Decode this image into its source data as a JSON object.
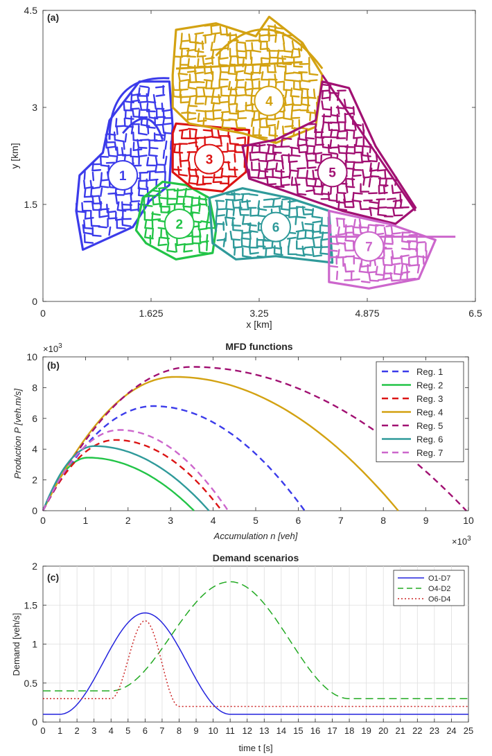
{
  "figure": {
    "panels": [
      "(a)",
      "(b)",
      "(c)"
    ]
  },
  "chart_data": [
    {
      "type": "map",
      "panel_label": "(a)",
      "xlabel": "x [km]",
      "ylabel": "y [km]",
      "xlim": [
        0,
        6.5
      ],
      "ylim": [
        0,
        4.5
      ],
      "xticks": [
        "0",
        "1.625",
        "3.25",
        "4.875",
        "6.5"
      ],
      "yticks": [
        "0",
        "1.5",
        "3",
        "4.5"
      ],
      "regions": [
        {
          "id": "1",
          "color": "#3b3bea",
          "center": [
            1.2,
            1.95
          ]
        },
        {
          "id": "2",
          "color": "#22c447",
          "center": [
            2.05,
            1.2
          ]
        },
        {
          "id": "3",
          "color": "#dc1414",
          "center": [
            2.5,
            2.2
          ]
        },
        {
          "id": "4",
          "color": "#d3a212",
          "center": [
            3.4,
            3.1
          ]
        },
        {
          "id": "5",
          "color": "#a11072",
          "center": [
            4.35,
            2.0
          ]
        },
        {
          "id": "6",
          "color": "#2f9a9a",
          "center": [
            3.5,
            1.15
          ]
        },
        {
          "id": "7",
          "color": "#cc66cc",
          "center": [
            4.9,
            0.85
          ]
        }
      ]
    },
    {
      "type": "line",
      "panel_label": "(b)",
      "title": "MFD functions",
      "xlabel": "Accumulation n [veh]",
      "ylabel": "Production P [veh.m/s]",
      "x_multiplier": "×10^3",
      "y_multiplier": "×10^3",
      "xlim": [
        0,
        10
      ],
      "ylim": [
        0,
        10
      ],
      "xticks": [
        0,
        1,
        2,
        3,
        4,
        5,
        6,
        7,
        8,
        9,
        10
      ],
      "yticks": [
        0,
        2,
        4,
        6,
        8,
        10
      ],
      "legend_position": "top-right",
      "series": [
        {
          "name": "Reg. 1",
          "color": "#3b3bea",
          "dash": "dashed",
          "n_peak": 2.6,
          "p_peak": 6.8,
          "n_jam": 6.15
        },
        {
          "name": "Reg. 2",
          "color": "#22c447",
          "dash": "solid",
          "n_peak": 1.05,
          "p_peak": 3.45,
          "n_jam": 3.55
        },
        {
          "name": "Reg. 3",
          "color": "#dc1414",
          "dash": "dashed",
          "n_peak": 1.7,
          "p_peak": 4.6,
          "n_jam": 4.2
        },
        {
          "name": "Reg. 4",
          "color": "#d3a212",
          "dash": "solid",
          "n_peak": 3.1,
          "p_peak": 8.7,
          "n_jam": 8.35
        },
        {
          "name": "Reg. 5",
          "color": "#a11072",
          "dash": "dashed",
          "n_peak": 3.5,
          "p_peak": 9.35,
          "n_jam": 9.95
        },
        {
          "name": "Reg. 6",
          "color": "#2f9a9a",
          "dash": "solid",
          "n_peak": 1.2,
          "p_peak": 4.2,
          "n_jam": 3.9
        },
        {
          "name": "Reg. 7",
          "color": "#cc66cc",
          "dash": "dashed",
          "n_peak": 1.8,
          "p_peak": 5.25,
          "n_jam": 4.35
        }
      ]
    },
    {
      "type": "line",
      "panel_label": "(c)",
      "title": "Demand scenarios",
      "xlabel": "time t [s]",
      "ylabel": "Demand [veh/s]",
      "xlim": [
        0,
        25
      ],
      "ylim": [
        0,
        2
      ],
      "xticks": [
        0,
        1,
        2,
        3,
        4,
        5,
        6,
        7,
        8,
        9,
        10,
        11,
        12,
        13,
        14,
        15,
        16,
        17,
        18,
        19,
        20,
        21,
        22,
        23,
        24,
        25
      ],
      "yticks": [
        "0",
        "0.5",
        "1",
        "1.5",
        "2"
      ],
      "grid": true,
      "legend_position": "top-right",
      "series": [
        {
          "name": "O1-D7",
          "color": "#2222dd",
          "dash": "solid",
          "base": 0.1,
          "peak": 1.4,
          "t_start": 1.0,
          "t_peak": 6.0,
          "t_end": 11.0,
          "base_after": 0.1
        },
        {
          "name": "O4-D2",
          "color": "#22aa22",
          "dash": "dashed",
          "base": 0.4,
          "peak": 1.8,
          "t_start": 4.0,
          "t_peak": 11.0,
          "t_end": 18.0,
          "base_after": 0.3
        },
        {
          "name": "O6-D4",
          "color": "#cc2222",
          "dash": "dotted",
          "base": 0.3,
          "peak": 1.3,
          "t_start": 4.0,
          "t_peak": 6.0,
          "t_end": 8.0,
          "base_after": 0.2
        }
      ]
    }
  ]
}
